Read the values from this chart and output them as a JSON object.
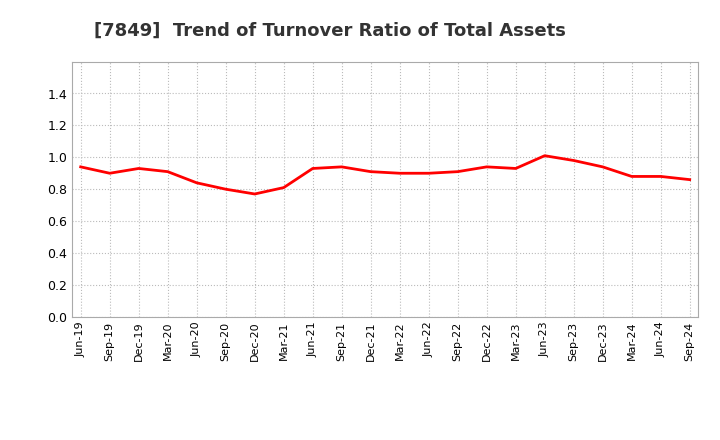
{
  "title": "[7849]  Trend of Turnover Ratio of Total Assets",
  "title_fontsize": 13,
  "line_color": "#FF0000",
  "line_width": 2.0,
  "background_color": "#FFFFFF",
  "grid_color": "#BBBBBB",
  "ylim": [
    0.0,
    1.6
  ],
  "yticks": [
    0.0,
    0.2,
    0.4,
    0.6,
    0.8,
    1.0,
    1.2,
    1.4
  ],
  "x_labels": [
    "Jun-19",
    "Sep-19",
    "Dec-19",
    "Mar-20",
    "Jun-20",
    "Sep-20",
    "Dec-20",
    "Mar-21",
    "Jun-21",
    "Sep-21",
    "Dec-21",
    "Mar-22",
    "Jun-22",
    "Sep-22",
    "Dec-22",
    "Mar-23",
    "Jun-23",
    "Sep-23",
    "Dec-23",
    "Mar-24",
    "Jun-24",
    "Sep-24"
  ],
  "values": [
    0.94,
    0.9,
    0.93,
    0.91,
    0.84,
    0.8,
    0.77,
    0.81,
    0.93,
    0.94,
    0.91,
    0.9,
    0.9,
    0.91,
    0.94,
    0.93,
    1.01,
    0.98,
    0.94,
    0.88,
    0.88,
    0.86
  ]
}
